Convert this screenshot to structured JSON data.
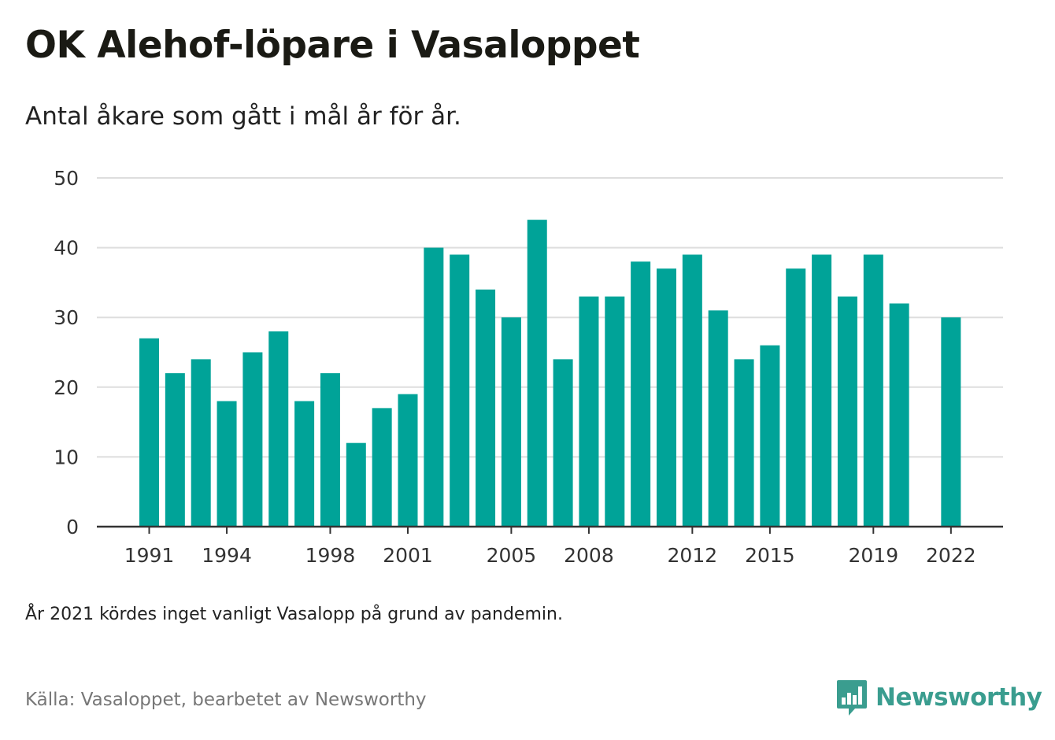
{
  "header": {
    "title": "OK Alehof-löpare i Vasaloppet",
    "subtitle": "Antal åkare som gått i mål år för år."
  },
  "footer": {
    "note": "År 2021 kördes inget vanligt Vasalopp på grund av pandemin.",
    "source": "Källa: Vasaloppet, bearbetet av Newsworthy",
    "brand": "Newsworthy",
    "brand_color": "#3a9d8f"
  },
  "chart_data": {
    "type": "bar",
    "title": "OK Alehof-löpare i Vasaloppet",
    "subtitle": "Antal åkare som gått i mål år för år.",
    "xlabel": "",
    "ylabel": "",
    "bar_color": "#00a398",
    "ylim": [
      0,
      50
    ],
    "yticks": [
      0,
      10,
      20,
      30,
      40,
      50
    ],
    "grid": true,
    "x_tick_labels": [
      1991,
      1994,
      1998,
      2001,
      2005,
      2008,
      2012,
      2015,
      2019,
      2022
    ],
    "x": [
      1991,
      1992,
      1993,
      1994,
      1995,
      1996,
      1997,
      1998,
      1999,
      2000,
      2001,
      2002,
      2003,
      2004,
      2005,
      2006,
      2007,
      2008,
      2009,
      2010,
      2011,
      2012,
      2013,
      2014,
      2015,
      2016,
      2017,
      2018,
      2019,
      2020,
      2022
    ],
    "values": [
      27,
      22,
      24,
      18,
      25,
      28,
      18,
      22,
      12,
      17,
      19,
      40,
      39,
      34,
      30,
      44,
      24,
      33,
      33,
      38,
      37,
      39,
      31,
      24,
      26,
      37,
      39,
      33,
      39,
      32,
      30
    ]
  }
}
